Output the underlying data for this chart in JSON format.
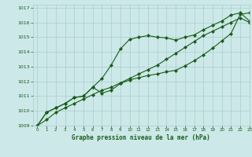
{
  "title": "Graphe pression niveau de la mer (hPa)",
  "bg_color": "#cce8e8",
  "grid_color": "#aacece",
  "line_color": "#1a5c1a",
  "marker_color": "#1a5c1a",
  "xlim": [
    -0.5,
    23
  ],
  "ylim": [
    1009,
    1017.2
  ],
  "xticks": [
    0,
    1,
    2,
    3,
    4,
    5,
    6,
    7,
    8,
    9,
    10,
    11,
    12,
    13,
    14,
    15,
    16,
    17,
    18,
    19,
    20,
    21,
    22,
    23
  ],
  "yticks": [
    1009,
    1010,
    1011,
    1012,
    1013,
    1014,
    1015,
    1016,
    1017
  ],
  "series1": [
    1009.0,
    1009.4,
    1009.9,
    1010.2,
    1010.5,
    1010.8,
    1011.1,
    1011.4,
    1011.6,
    1011.9,
    1012.2,
    1012.5,
    1012.8,
    1013.1,
    1013.5,
    1013.9,
    1014.3,
    1014.7,
    1015.1,
    1015.4,
    1015.7,
    1016.0,
    1016.3,
    1016.0
  ],
  "series2": [
    1009.0,
    1009.9,
    1010.2,
    1010.5,
    1010.9,
    1011.0,
    1011.6,
    1012.2,
    1013.1,
    1014.2,
    1014.85,
    1015.0,
    1015.1,
    1015.0,
    1014.95,
    1014.8,
    1015.0,
    1015.15,
    1015.5,
    1015.8,
    1016.1,
    1016.5,
    1016.65,
    1016.1
  ],
  "series3": [
    1009.0,
    1009.9,
    1010.2,
    1010.5,
    1010.9,
    1011.0,
    1011.6,
    1011.2,
    1011.4,
    1011.85,
    1012.1,
    1012.25,
    1012.4,
    1012.5,
    1012.65,
    1012.75,
    1013.05,
    1013.4,
    1013.8,
    1014.25,
    1014.75,
    1015.25,
    1016.55,
    1016.65
  ]
}
